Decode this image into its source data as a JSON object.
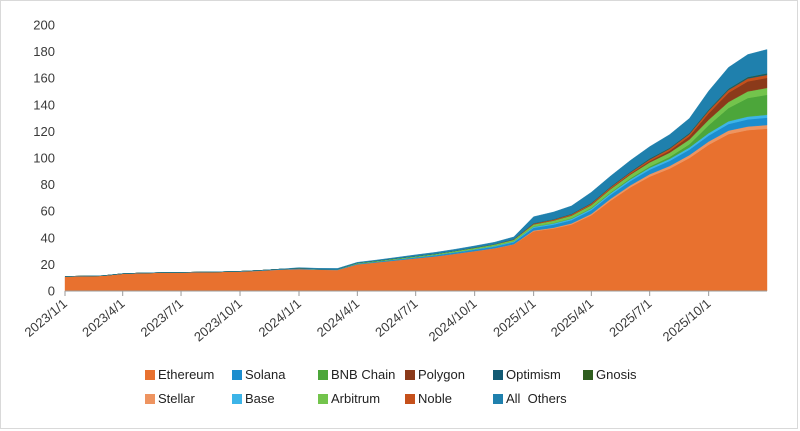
{
  "chart_data": {
    "type": "area",
    "stacked": true,
    "ylim": [
      0,
      200
    ],
    "y_ticks": [
      0,
      20,
      40,
      60,
      80,
      100,
      120,
      140,
      160,
      180,
      200
    ],
    "x_range": [
      "2023/1/1",
      "2025/12/31"
    ],
    "x_ticks": [
      "2023/1/1",
      "2023/4/1",
      "2023/7/1",
      "2023/10/1",
      "2024/1/1",
      "2024/4/1",
      "2024/7/1",
      "2024/10/1",
      "2025/1/1",
      "2025/4/1",
      "2025/7/1",
      "2025/10/1"
    ],
    "grid": false,
    "legend_position": "bottom",
    "dates": [
      "2023/1/1",
      "2023/2/1",
      "2023/3/1",
      "2023/4/1",
      "2023/5/1",
      "2023/6/1",
      "2023/7/1",
      "2023/8/1",
      "2023/9/1",
      "2023/10/1",
      "2023/11/1",
      "2023/12/1",
      "2024/1/1",
      "2024/2/1",
      "2024/3/1",
      "2024/4/1",
      "2024/5/1",
      "2024/6/1",
      "2024/7/1",
      "2024/8/1",
      "2024/9/1",
      "2024/10/1",
      "2024/11/1",
      "2024/12/1",
      "2025/1/1",
      "2025/2/1",
      "2025/3/1",
      "2025/4/1",
      "2025/5/1",
      "2025/6/1",
      "2025/7/1",
      "2025/8/1",
      "2025/9/1",
      "2025/10/1",
      "2025/11/1",
      "2025/12/1",
      "2025/12/31"
    ],
    "series": [
      {
        "name": "Ethereum",
        "color": "#E8712F",
        "values": [
          11,
          11.2,
          11.5,
          13,
          13.5,
          13.8,
          14,
          14.2,
          14.4,
          14.6,
          15.2,
          16,
          16.5,
          16,
          15.8,
          20,
          21.5,
          23,
          24.5,
          26,
          28,
          30,
          32,
          35,
          45,
          47,
          50,
          57,
          68,
          78,
          86,
          92,
          100,
          110,
          118,
          121,
          122
        ]
      },
      {
        "name": "Stellar",
        "color": "#EE9460",
        "values": [
          0,
          0,
          0,
          0,
          0,
          0,
          0,
          0,
          0,
          0,
          0,
          0,
          0,
          0,
          0,
          0,
          0,
          0,
          0,
          0,
          0,
          0,
          0.1,
          0.2,
          0.5,
          0.6,
          0.8,
          1,
          1.3,
          1.5,
          1.8,
          2,
          2.2,
          2.4,
          2.6,
          2.7,
          2.8
        ]
      },
      {
        "name": "Solana",
        "color": "#1C8DCE",
        "values": [
          0,
          0,
          0,
          0,
          0,
          0,
          0,
          0,
          0,
          0.2,
          0.3,
          0.4,
          0.5,
          0.5,
          0.5,
          0.6,
          0.6,
          0.7,
          0.8,
          0.9,
          1,
          1.1,
          1.3,
          1.5,
          2,
          2.3,
          2.5,
          2.8,
          3,
          3.2,
          3.5,
          3.8,
          4.1,
          4.5,
          5,
          5.3,
          5.5
        ]
      },
      {
        "name": "Base",
        "color": "#3CB4E8",
        "values": [
          0,
          0,
          0,
          0,
          0,
          0,
          0,
          0,
          0,
          0,
          0,
          0,
          0,
          0,
          0,
          0.1,
          0.1,
          0.2,
          0.2,
          0.3,
          0.3,
          0.4,
          0.5,
          0.6,
          0.8,
          0.9,
          1,
          1.1,
          1.2,
          1.3,
          1.4,
          1.5,
          1.6,
          1.8,
          2,
          2.1,
          2.2
        ]
      },
      {
        "name": "BNB Chain",
        "color": "#4CA63A",
        "values": [
          0,
          0,
          0,
          0,
          0,
          0,
          0,
          0,
          0,
          0,
          0,
          0,
          0,
          0,
          0,
          0,
          0,
          0,
          0,
          0,
          0,
          0,
          0,
          0,
          0.2,
          0.3,
          0.4,
          0.5,
          0.6,
          0.8,
          1,
          1.5,
          2.5,
          6,
          10,
          14,
          15
        ]
      },
      {
        "name": "Arbitrum",
        "color": "#73C44C",
        "values": [
          0,
          0,
          0,
          0,
          0,
          0,
          0,
          0,
          0,
          0,
          0,
          0,
          0.1,
          0.1,
          0.2,
          0.4,
          0.5,
          0.6,
          0.7,
          0.8,
          0.9,
          1,
          1.1,
          1.3,
          1.6,
          1.8,
          2,
          2.2,
          2.5,
          2.7,
          3,
          3.2,
          3.5,
          4,
          4.5,
          5,
          5.2
        ]
      },
      {
        "name": "Polygon",
        "color": "#8B3A1A",
        "values": [
          0,
          0,
          0,
          0,
          0,
          0,
          0,
          0,
          0,
          0,
          0,
          0,
          0,
          0,
          0,
          0,
          0,
          0,
          0,
          0,
          0,
          0,
          0,
          0,
          0.1,
          0.2,
          0.3,
          0.4,
          0.5,
          0.7,
          1,
          1.5,
          2.5,
          5,
          7,
          7.5,
          7.5
        ]
      },
      {
        "name": "Noble",
        "color": "#C5501B",
        "values": [
          0,
          0,
          0,
          0,
          0,
          0,
          0,
          0,
          0,
          0,
          0,
          0,
          0,
          0,
          0,
          0,
          0,
          0,
          0,
          0,
          0,
          0.1,
          0.2,
          0.3,
          0.5,
          0.6,
          0.7,
          0.8,
          0.9,
          1,
          1.2,
          1.4,
          1.6,
          1.8,
          2,
          2.2,
          2.3
        ]
      },
      {
        "name": "Optimism",
        "color": "#125A73",
        "values": [
          0,
          0,
          0,
          0,
          0,
          0,
          0,
          0,
          0,
          0,
          0,
          0,
          0,
          0,
          0,
          0,
          0,
          0,
          0,
          0,
          0,
          0,
          0,
          0,
          0.2,
          0.2,
          0.3,
          0.3,
          0.4,
          0.4,
          0.5,
          0.5,
          0.6,
          0.6,
          0.7,
          0.7,
          0.8
        ]
      },
      {
        "name": "Gnosis",
        "color": "#2F5E1F",
        "values": [
          0,
          0,
          0,
          0,
          0,
          0,
          0,
          0,
          0,
          0,
          0,
          0,
          0,
          0,
          0,
          0,
          0,
          0,
          0,
          0,
          0,
          0,
          0,
          0,
          0,
          0,
          0,
          0.1,
          0.1,
          0.1,
          0.2,
          0.2,
          0.2,
          0.3,
          0.3,
          0.3,
          0.3
        ]
      },
      {
        "name": "All  Others",
        "color": "#1F80AD",
        "values": [
          0,
          0,
          0,
          0,
          0,
          0,
          0,
          0,
          0,
          0,
          0,
          0,
          0.5,
          0.5,
          0.5,
          0.5,
          0.6,
          0.8,
          1,
          1.1,
          1.2,
          1.3,
          1.5,
          1.8,
          5,
          5.5,
          6,
          8,
          8,
          8.5,
          9,
          10,
          11,
          14,
          16,
          17,
          18
        ]
      }
    ],
    "legend_rows": [
      [
        "Ethereum",
        "Solana",
        "BNB Chain",
        "Polygon",
        "Optimism",
        "Gnosis"
      ],
      [
        "Stellar",
        "Base",
        "Arbitrum",
        "Noble",
        "All  Others"
      ]
    ]
  }
}
